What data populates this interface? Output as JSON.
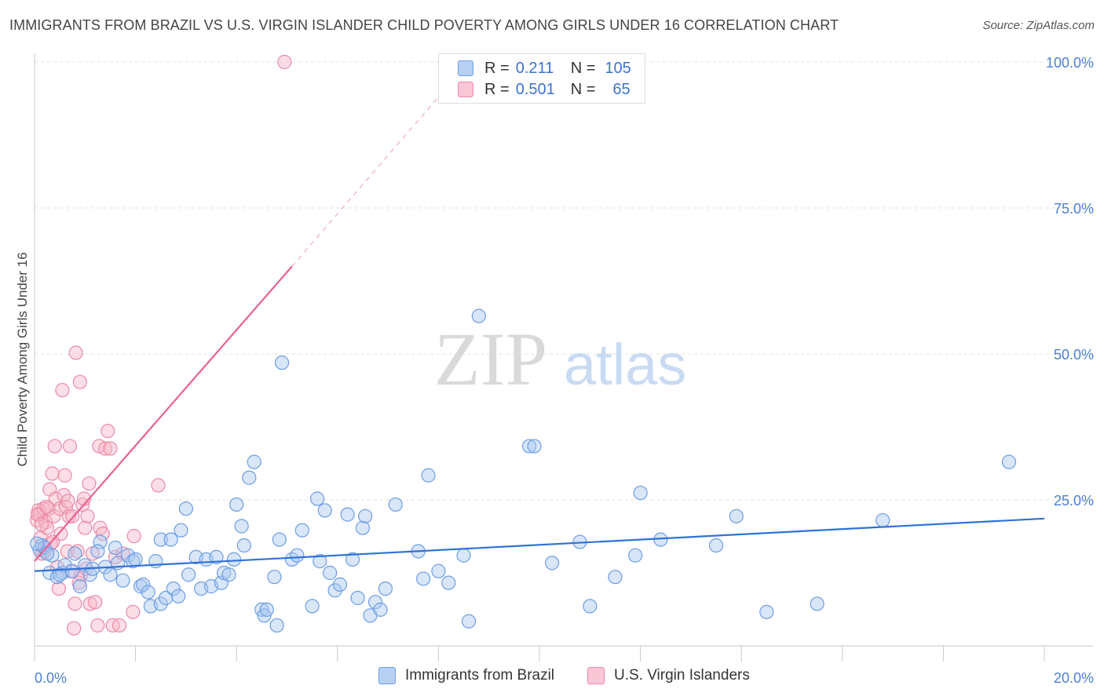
{
  "title": "IMMIGRANTS FROM BRAZIL VS U.S. VIRGIN ISLANDER CHILD POVERTY AMONG GIRLS UNDER 16 CORRELATION CHART",
  "source": "Source: ZipAtlas.com",
  "watermark": {
    "zip": "ZIP",
    "atlas": "atlas"
  },
  "legend": {
    "r_label": "R =",
    "n_label": "N =",
    "series1": {
      "r": "0.211",
      "n": "105"
    },
    "series2": {
      "r": "0.501",
      "n": "65"
    }
  },
  "bottom_legend": {
    "series1": "Immigrants from Brazil",
    "series2": "U.S. Virgin Islanders"
  },
  "colors": {
    "blue_fill": "#a9c7f0",
    "blue_stroke": "#6d9de6",
    "blue_line": "#2f72d6",
    "pink_fill": "#f6b5c8",
    "pink_stroke": "#ec89a8",
    "pink_line": "#e8628f",
    "tick_color": "#4a7fd4"
  },
  "chart_data": {
    "type": "scatter",
    "title": "IMMIGRANTS FROM BRAZIL VS U.S. VIRGIN ISLANDER CHILD POVERTY AMONG GIRLS UNDER 16 CORRELATION CHART",
    "xlabel": "",
    "ylabel": "Child Poverty Among Girls Under 16",
    "xlim": [
      0,
      20
    ],
    "ylim": [
      0,
      102
    ],
    "x_tick_labels": [
      "0.0%",
      "20.0%"
    ],
    "y_tick_labels": [
      "25.0%",
      "50.0%",
      "75.0%",
      "100.0%"
    ],
    "y_ticks": [
      25,
      50,
      75,
      100
    ],
    "grid": true,
    "series": [
      {
        "name": "Immigrants from Brazil",
        "r": 0.211,
        "n": 105,
        "trend": {
          "x0": 0,
          "y0": 12.8,
          "x1": 20,
          "y1": 21.8
        },
        "points": [
          [
            0.1,
            16.5
          ],
          [
            0.15,
            17.2
          ],
          [
            0.2,
            16.8
          ],
          [
            0.3,
            12.5
          ],
          [
            0.35,
            15.5
          ],
          [
            0.45,
            11.8
          ],
          [
            0.55,
            12.5
          ],
          [
            0.6,
            13.8
          ],
          [
            0.75,
            12.8
          ],
          [
            0.8,
            15.8
          ],
          [
            0.9,
            10.2
          ],
          [
            1.0,
            13.8
          ],
          [
            1.1,
            12.2
          ],
          [
            1.15,
            13.2
          ],
          [
            1.3,
            17.8
          ],
          [
            1.4,
            13.5
          ],
          [
            1.5,
            12.2
          ],
          [
            1.6,
            16.8
          ],
          [
            1.65,
            14.2
          ],
          [
            1.75,
            11.2
          ],
          [
            1.85,
            15.5
          ],
          [
            1.95,
            14.5
          ],
          [
            2.0,
            14.8
          ],
          [
            2.1,
            10.2
          ],
          [
            2.15,
            10.5
          ],
          [
            2.25,
            9.2
          ],
          [
            2.3,
            6.8
          ],
          [
            2.4,
            14.5
          ],
          [
            2.5,
            7.2
          ],
          [
            2.5,
            18.2
          ],
          [
            2.6,
            8.2
          ],
          [
            2.7,
            18.2
          ],
          [
            2.75,
            9.8
          ],
          [
            2.85,
            8.5
          ],
          [
            2.9,
            19.8
          ],
          [
            3.0,
            23.5
          ],
          [
            3.05,
            12.2
          ],
          [
            3.2,
            15.2
          ],
          [
            3.3,
            9.8
          ],
          [
            3.4,
            14.8
          ],
          [
            3.5,
            10.2
          ],
          [
            3.6,
            15.2
          ],
          [
            3.7,
            10.8
          ],
          [
            3.75,
            12.5
          ],
          [
            3.85,
            12.2
          ],
          [
            3.95,
            14.8
          ],
          [
            4.0,
            24.2
          ],
          [
            4.1,
            20.5
          ],
          [
            4.15,
            17.2
          ],
          [
            4.25,
            28.8
          ],
          [
            4.35,
            31.5
          ],
          [
            4.5,
            6.2
          ],
          [
            4.55,
            5.2
          ],
          [
            4.6,
            6.2
          ],
          [
            4.75,
            11.8
          ],
          [
            4.8,
            3.5
          ],
          [
            4.85,
            18.2
          ],
          [
            4.9,
            48.5
          ],
          [
            5.1,
            14.8
          ],
          [
            5.2,
            15.5
          ],
          [
            5.3,
            19.8
          ],
          [
            5.5,
            6.8
          ],
          [
            5.6,
            25.2
          ],
          [
            5.65,
            14.5
          ],
          [
            5.75,
            23.2
          ],
          [
            5.85,
            12.5
          ],
          [
            5.95,
            9.5
          ],
          [
            6.05,
            10.5
          ],
          [
            6.2,
            22.5
          ],
          [
            6.3,
            14.8
          ],
          [
            6.4,
            8.2
          ],
          [
            6.5,
            20.2
          ],
          [
            6.55,
            22.2
          ],
          [
            6.65,
            5.2
          ],
          [
            6.75,
            7.5
          ],
          [
            6.85,
            6.2
          ],
          [
            6.95,
            9.8
          ],
          [
            7.15,
            24.2
          ],
          [
            7.6,
            16.2
          ],
          [
            7.7,
            11.5
          ],
          [
            7.8,
            29.2
          ],
          [
            8.0,
            12.8
          ],
          [
            8.2,
            10.8
          ],
          [
            8.5,
            15.5
          ],
          [
            8.6,
            4.2
          ],
          [
            8.8,
            56.5
          ],
          [
            9.8,
            34.2
          ],
          [
            9.9,
            34.2
          ],
          [
            10.25,
            14.2
          ],
          [
            10.8,
            17.8
          ],
          [
            11.0,
            6.8
          ],
          [
            11.5,
            11.8
          ],
          [
            11.9,
            15.5
          ],
          [
            12.0,
            26.2
          ],
          [
            12.4,
            18.2
          ],
          [
            13.5,
            17.2
          ],
          [
            13.9,
            22.2
          ],
          [
            14.5,
            5.8
          ],
          [
            15.5,
            7.2
          ],
          [
            16.8,
            21.5
          ],
          [
            19.3,
            31.5
          ],
          [
            0.05,
            17.5
          ],
          [
            0.25,
            15.8
          ],
          [
            0.5,
            12.2
          ],
          [
            1.25,
            16.2
          ]
        ]
      },
      {
        "name": "U.S. Virgin Islanders",
        "r": 0.501,
        "n": 65,
        "trend": {
          "x0": 0,
          "y0": 14.5,
          "x1": 5.1,
          "y1": 65.0
        },
        "trend_extension": {
          "x0": 5.1,
          "y0": 65.0,
          "x1": 8.2,
          "y1": 96.0
        },
        "points": [
          [
            0.05,
            21.5
          ],
          [
            0.08,
            23.2
          ],
          [
            0.1,
            22.5
          ],
          [
            0.12,
            18.5
          ],
          [
            0.15,
            15.8
          ],
          [
            0.18,
            23.5
          ],
          [
            0.2,
            16.2
          ],
          [
            0.22,
            21.2
          ],
          [
            0.25,
            20.2
          ],
          [
            0.28,
            23.5
          ],
          [
            0.3,
            26.8
          ],
          [
            0.32,
            17.5
          ],
          [
            0.35,
            29.5
          ],
          [
            0.38,
            22.2
          ],
          [
            0.4,
            34.2
          ],
          [
            0.42,
            25.2
          ],
          [
            0.45,
            13.5
          ],
          [
            0.48,
            9.8
          ],
          [
            0.5,
            23.5
          ],
          [
            0.52,
            19.2
          ],
          [
            0.55,
            43.8
          ],
          [
            0.58,
            25.8
          ],
          [
            0.6,
            29.2
          ],
          [
            0.62,
            23.8
          ],
          [
            0.65,
            16.2
          ],
          [
            0.68,
            22.2
          ],
          [
            0.7,
            34.2
          ],
          [
            0.72,
            12.8
          ],
          [
            0.75,
            22.2
          ],
          [
            0.78,
            3.0
          ],
          [
            0.8,
            7.2
          ],
          [
            0.82,
            50.2
          ],
          [
            0.85,
            16.2
          ],
          [
            0.88,
            10.8
          ],
          [
            0.9,
            45.2
          ],
          [
            0.92,
            12.2
          ],
          [
            0.95,
            24.2
          ],
          [
            0.98,
            25.2
          ],
          [
            1.0,
            20.2
          ],
          [
            1.02,
            13.2
          ],
          [
            1.05,
            22.2
          ],
          [
            1.08,
            27.8
          ],
          [
            1.1,
            7.2
          ],
          [
            1.15,
            15.8
          ],
          [
            1.2,
            7.5
          ],
          [
            1.25,
            3.5
          ],
          [
            1.28,
            34.2
          ],
          [
            1.3,
            20.2
          ],
          [
            1.35,
            19.2
          ],
          [
            1.4,
            33.8
          ],
          [
            1.45,
            36.8
          ],
          [
            1.5,
            33.8
          ],
          [
            1.55,
            3.5
          ],
          [
            1.6,
            15.2
          ],
          [
            1.68,
            3.5
          ],
          [
            1.75,
            15.8
          ],
          [
            1.95,
            5.8
          ],
          [
            1.97,
            18.8
          ],
          [
            2.45,
            27.5
          ],
          [
            4.95,
            100.0
          ],
          [
            0.06,
            22.5
          ],
          [
            0.14,
            20.8
          ],
          [
            0.24,
            23.8
          ],
          [
            0.36,
            17.8
          ],
          [
            0.66,
            24.8
          ]
        ]
      }
    ]
  }
}
